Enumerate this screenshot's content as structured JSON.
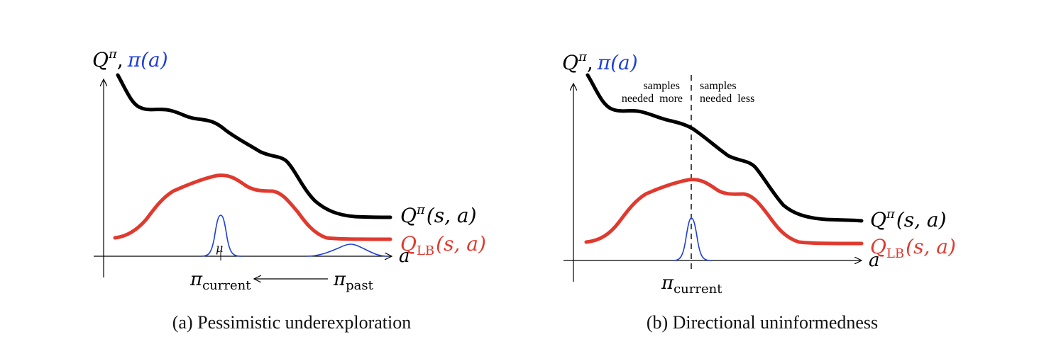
{
  "colors": {
    "q_curve": "#000000",
    "lb_curve": "#e03a2f",
    "policy": "#1f3fd8",
    "axis": "#000000"
  },
  "panels": [
    {
      "caption": "(a) Pessimistic underexploration",
      "ylabel_q": "Q",
      "ylabel_q_sup": "π",
      "ylabel_sep": ",",
      "ylabel_pi": "π(a)",
      "xlabel": "a",
      "legend_q": "Q",
      "legend_q_sup": "π",
      "legend_q_args": "(s, a)",
      "legend_lb": "Q",
      "legend_lb_sub": "LB",
      "legend_lb_args": "(s, a)",
      "mu_label": "μ",
      "pi_current": "π",
      "pi_current_sub": "current",
      "pi_past": "π",
      "pi_past_sub": "past"
    },
    {
      "caption": "(b) Directional uninformedness",
      "ylabel_q": "Q",
      "ylabel_q_sup": "π",
      "ylabel_sep": ",",
      "ylabel_pi": "π(a)",
      "xlabel": "a",
      "legend_q": "Q",
      "legend_q_sup": "π",
      "legend_q_args": "(s, a)",
      "legend_lb": "Q",
      "legend_lb_sub": "LB",
      "legend_lb_args": "(s, a)",
      "left_note_line1": "samples",
      "left_note_line2": "needed  more",
      "right_note_line1": "samples",
      "right_note_line2": "needed  less",
      "pi_current": "π",
      "pi_current_sub": "current"
    }
  ]
}
